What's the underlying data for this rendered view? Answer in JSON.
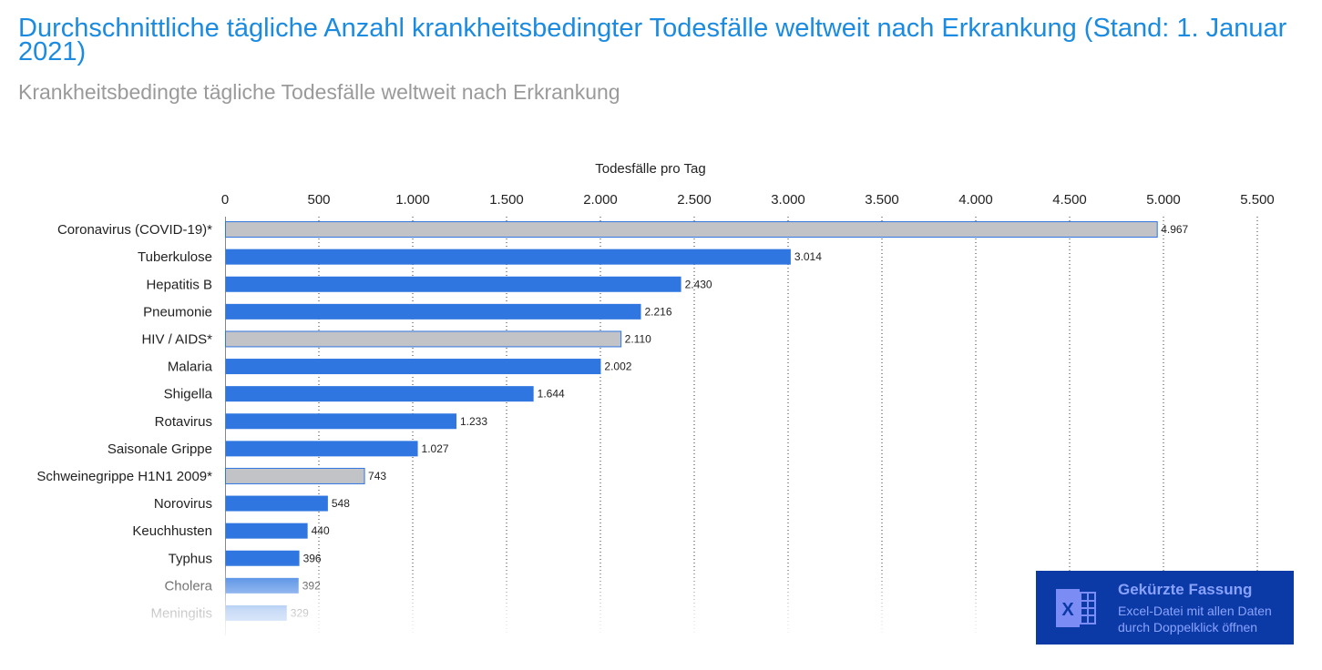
{
  "header": {
    "title": "Durchschnittliche tägliche Anzahl krankheitsbedingter Todesfälle weltweit nach Erkrankung (Stand: 1. Januar 2021)",
    "subtitle": "Krankheitsbedingte tägliche Todesfälle weltweit nach Erkrankung"
  },
  "excel_box": {
    "heading": "Gekürzte Fassung",
    "text": "Excel-Datei mit allen Daten durch Doppelklick öffnen",
    "icon": "excel-icon"
  },
  "colors": {
    "primary_bar": "#2f76e0",
    "highlight_bar": "#c2c3c6",
    "highlight_border": "#2f76e0",
    "title": "#1a8be0",
    "excel_box_bg": "#0b3aa6"
  },
  "chart_data": {
    "type": "bar",
    "orientation": "horizontal",
    "xlabel": "Todesfälle pro Tag",
    "xlim": [
      0,
      5500
    ],
    "ticks": [
      "0",
      "500",
      "1.000",
      "1.500",
      "2.000",
      "2.500",
      "3.000",
      "3.500",
      "4.000",
      "4.500",
      "5.000",
      "5.500"
    ],
    "tick_values": [
      0,
      500,
      1000,
      1500,
      2000,
      2500,
      3000,
      3500,
      4000,
      4500,
      5000,
      5500
    ],
    "grid": "vertical dotted",
    "categories": [
      "Coronavirus (COVID-19)*",
      "Tuberkulose",
      "Hepatitis B",
      "Pneumonie",
      "HIV / AIDS*",
      "Malaria",
      "Shigella",
      "Rotavirus",
      "Saisonale Grippe",
      "Schweinegrippe H1N1 2009*",
      "Norovirus",
      "Keuchhusten",
      "Typhus",
      "Cholera",
      "Meningitis"
    ],
    "values": [
      4967,
      3014,
      2430,
      2216,
      2110,
      2002,
      1644,
      1233,
      1027,
      743,
      548,
      440,
      396,
      392,
      329
    ],
    "value_labels": [
      "4.967",
      "3.014",
      "2.430",
      "2.216",
      "2.110",
      "2.002",
      "1.644",
      "1.233",
      "1.027",
      "743",
      "548",
      "440",
      "396",
      "392",
      "329"
    ],
    "highlighted": [
      true,
      false,
      false,
      false,
      true,
      false,
      false,
      false,
      false,
      true,
      false,
      false,
      false,
      false,
      false
    ]
  }
}
